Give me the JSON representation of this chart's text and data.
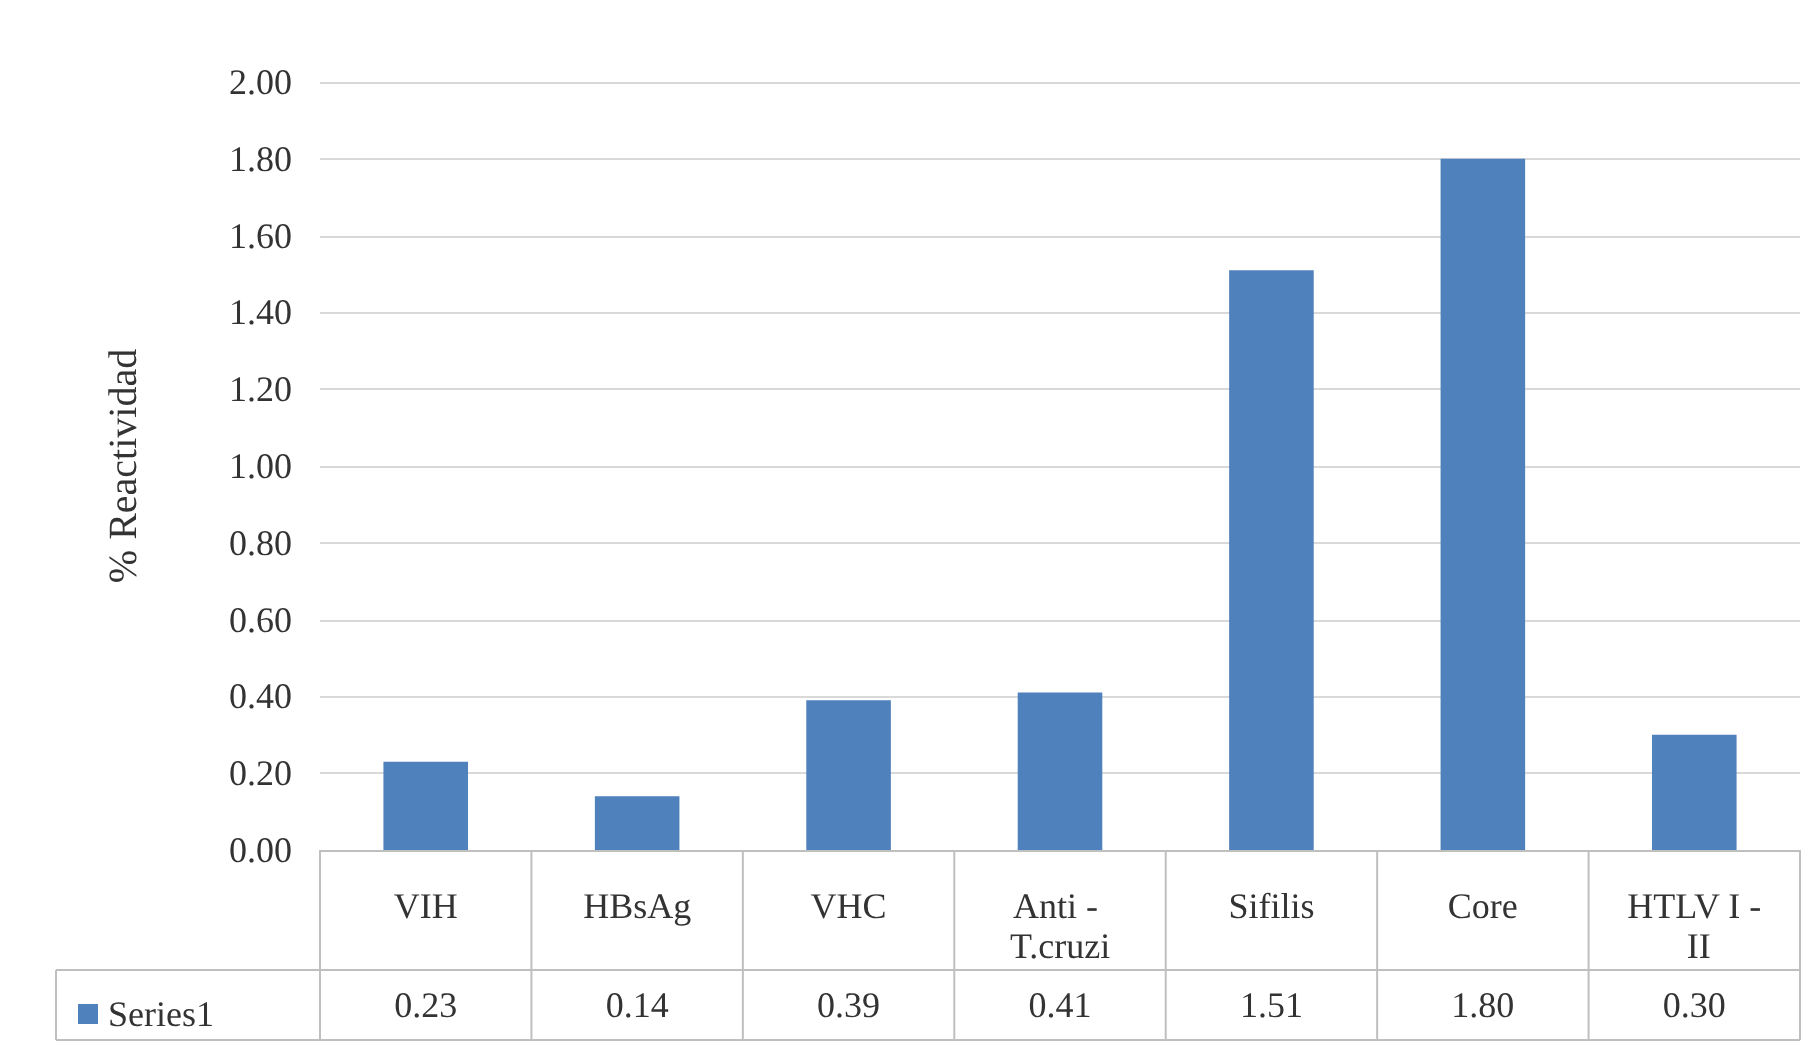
{
  "chart_data": {
    "type": "bar",
    "ylabel": "% Reactividad",
    "categories": [
      "VIH",
      "HBsAg",
      "VHC",
      "Anti - T.cruzi",
      "Sifilis",
      "Core",
      "HTLV I - II"
    ],
    "series": [
      {
        "name": "Series1",
        "color": "#4f81bd",
        "values": [
          0.23,
          0.14,
          0.39,
          0.41,
          1.51,
          1.8,
          0.3
        ],
        "value_labels": [
          "0.23",
          "0.14",
          "0.39",
          "0.41",
          "1.51",
          "1.80",
          "0.30"
        ]
      }
    ],
    "ylim": [
      0,
      2
    ],
    "yticks": [
      {
        "value": 0,
        "label": "0.00"
      },
      {
        "value": 0.2,
        "label": "0.20"
      },
      {
        "value": 0.4,
        "label": "0.40"
      },
      {
        "value": 0.6,
        "label": "0.60"
      },
      {
        "value": 0.8,
        "label": "0.80"
      },
      {
        "value": 1,
        "label": "1.00"
      },
      {
        "value": 1.2,
        "label": "1.20"
      },
      {
        "value": 1.4,
        "label": "1.40"
      },
      {
        "value": 1.6,
        "label": "1.60"
      },
      {
        "value": 1.8,
        "label": "1.80"
      },
      {
        "value": 2,
        "label": "2.00"
      }
    ],
    "grid": "y",
    "legend": "bottom left"
  }
}
